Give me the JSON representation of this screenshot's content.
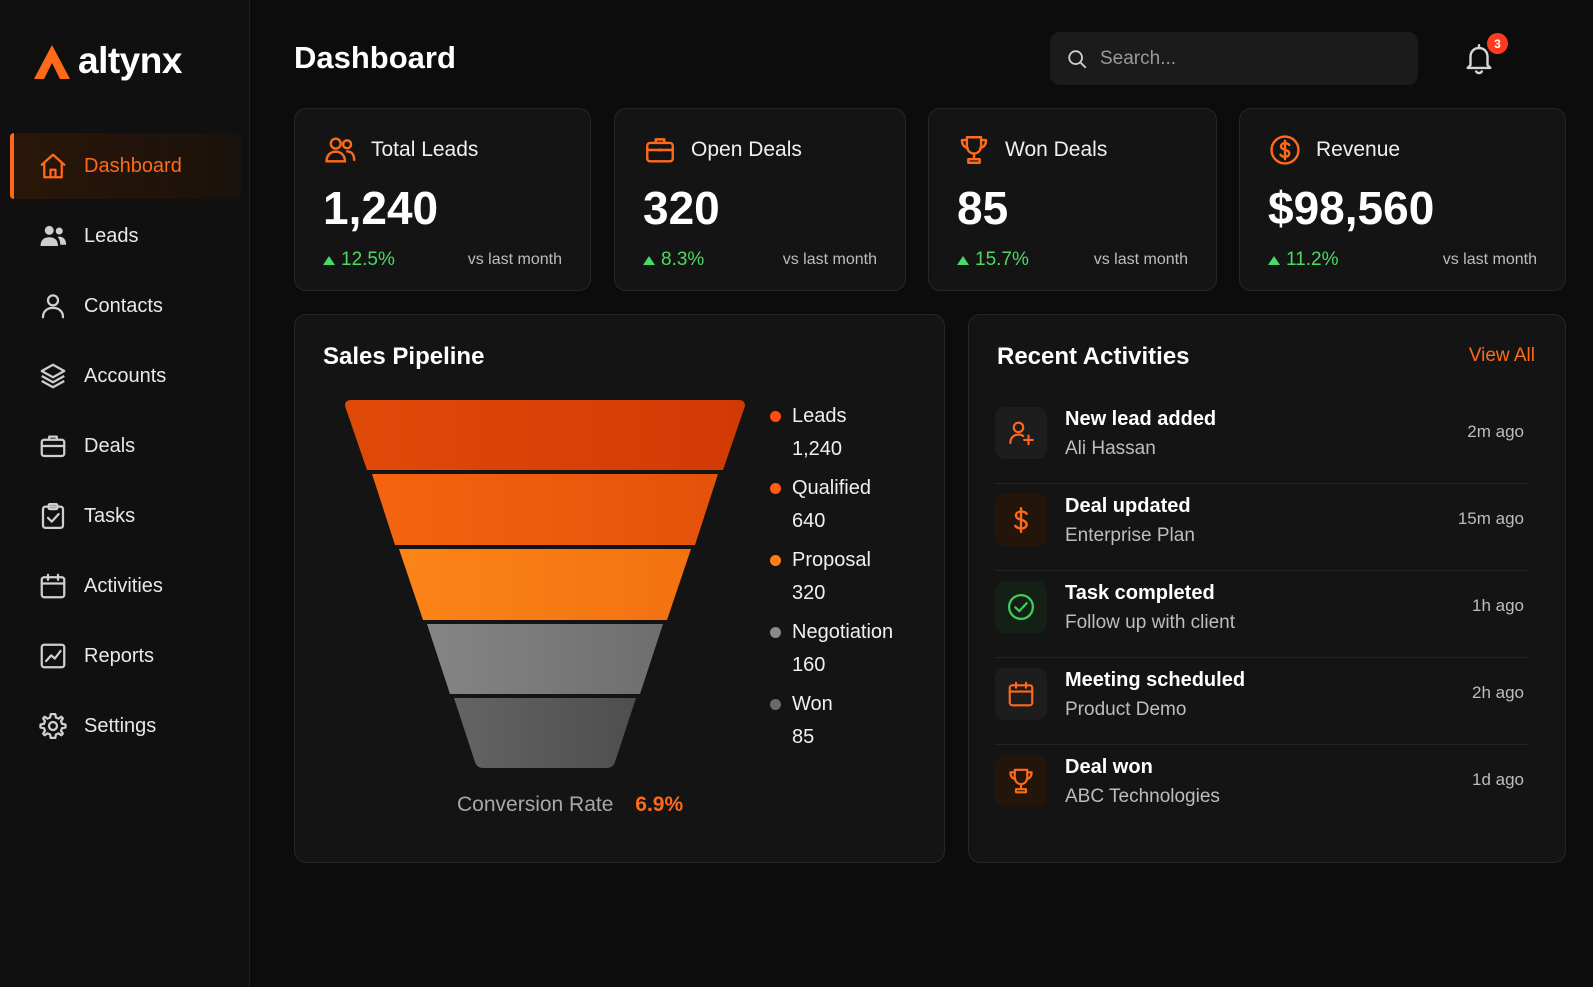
{
  "app": {
    "name": "altynx",
    "accent": "#ff6a1a"
  },
  "sidebar": {
    "items": [
      {
        "label": "Dashboard",
        "icon": "home-icon",
        "active": true
      },
      {
        "label": "Leads",
        "icon": "users-icon"
      },
      {
        "label": "Contacts",
        "icon": "user-icon"
      },
      {
        "label": "Accounts",
        "icon": "layers-icon"
      },
      {
        "label": "Deals",
        "icon": "briefcase-icon"
      },
      {
        "label": "Tasks",
        "icon": "clipboard-check-icon"
      },
      {
        "label": "Activities",
        "icon": "calendar-icon"
      },
      {
        "label": "Reports",
        "icon": "chart-line-icon"
      },
      {
        "label": "Settings",
        "icon": "gear-icon"
      }
    ]
  },
  "header": {
    "title": "Dashboard",
    "search_placeholder": "Search...",
    "notification_count": "3"
  },
  "stats": [
    {
      "label": "Total Leads",
      "value": "1,240",
      "change": "12.5%",
      "vs": "vs last month",
      "icon": "users-icon"
    },
    {
      "label": "Open Deals",
      "value": "320",
      "change": "8.3%",
      "vs": "vs last month",
      "icon": "briefcase-icon"
    },
    {
      "label": "Won Deals",
      "value": "85",
      "change": "15.7%",
      "vs": "vs last month",
      "icon": "trophy-icon"
    },
    {
      "label": "Revenue",
      "value": "$98,560",
      "change": "11.2%",
      "vs": "vs last month",
      "icon": "dollar-circle-icon"
    }
  ],
  "pipeline": {
    "title": "Sales Pipeline",
    "conversion_label": "Conversion Rate",
    "conversion_value": "6.9%",
    "stages": [
      {
        "name": "Leads",
        "value": "1,240",
        "color": "#dc3f06"
      },
      {
        "name": "Qualified",
        "value": "640",
        "color": "#ee5a0d"
      },
      {
        "name": "Proposal",
        "value": "320",
        "color": "#fa7a12"
      },
      {
        "name": "Negotiation",
        "value": "160",
        "color": "#7a7a7a"
      },
      {
        "name": "Won",
        "value": "85",
        "color": "#5a5a5a"
      }
    ]
  },
  "activities": {
    "title": "Recent Activities",
    "view_all": "View All",
    "items": [
      {
        "title": "New lead added",
        "subtitle": "Ali Hassan",
        "time": "2m ago",
        "icon": "user-plus-icon"
      },
      {
        "title": "Deal updated",
        "subtitle": "Enterprise Plan",
        "time": "15m ago",
        "icon": "dollar-icon"
      },
      {
        "title": "Task completed",
        "subtitle": "Follow up with client",
        "time": "1h ago",
        "icon": "check-circle-icon"
      },
      {
        "title": "Meeting scheduled",
        "subtitle": "Product Demo",
        "time": "2h ago",
        "icon": "calendar-icon"
      },
      {
        "title": "Deal won",
        "subtitle": "ABC Technologies",
        "time": "1d ago",
        "icon": "trophy-icon"
      }
    ]
  }
}
